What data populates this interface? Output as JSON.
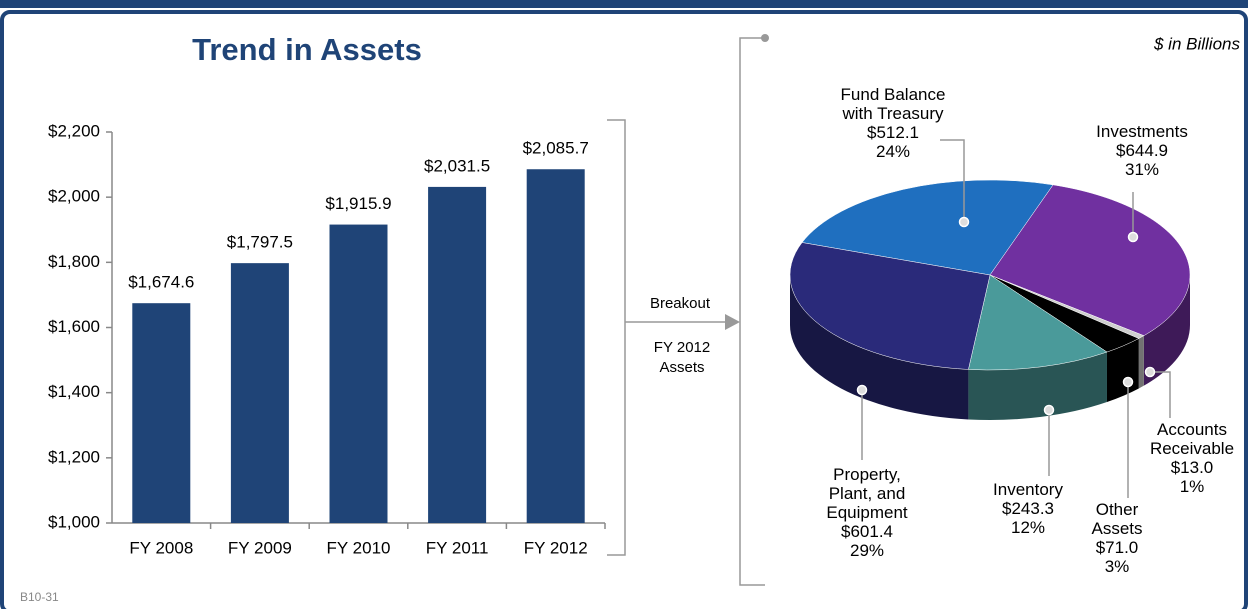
{
  "chart_data": [
    {
      "type": "bar",
      "title": "Trend in Assets",
      "categories": [
        "FY 2008",
        "FY 2009",
        "FY 2010",
        "FY 2011",
        "FY 2012"
      ],
      "values": [
        1674.6,
        1797.5,
        1915.9,
        2031.5,
        2085.7
      ],
      "value_labels": [
        "$1,674.6",
        "$1,797.5",
        "$1,915.9",
        "$2,031.5",
        "$2,085.7"
      ],
      "color": "#1f4477",
      "ylim": [
        1000,
        2200
      ],
      "yticks": [
        {
          "value": 1000,
          "label": "$1,000"
        },
        {
          "value": 1200,
          "label": "$1,200"
        },
        {
          "value": 1400,
          "label": "$1,400"
        },
        {
          "value": 1600,
          "label": "$1,600"
        },
        {
          "value": 1800,
          "label": "$1,800"
        },
        {
          "value": 2000,
          "label": "$2,000"
        },
        {
          "value": 2200,
          "label": "$2,200"
        }
      ]
    },
    {
      "type": "pie",
      "subtitle": "$ in Billions",
      "categories": [
        "Fund Balance with Treasury",
        "Investments",
        "Accounts Receivable",
        "Other Assets",
        "Inventory",
        "Property, Plant, and Equipment"
      ],
      "values": [
        512.1,
        644.9,
        13.0,
        71.0,
        243.3,
        601.4
      ],
      "value_labels": [
        "$512.1",
        "$644.9",
        "$13.0",
        "$71.0",
        "$243.3",
        "$601.4"
      ],
      "percents": [
        {
          "value": 24,
          "label": "24%"
        },
        {
          "value": 31,
          "label": "31%"
        },
        {
          "value": 1,
          "label": "1%"
        },
        {
          "value": 3,
          "label": "3%"
        },
        {
          "value": 12,
          "label": "12%"
        },
        {
          "value": 29,
          "label": "29%"
        }
      ],
      "colors": [
        "#1f6fbf",
        "#7030a0",
        "#cfcfcf",
        "#000000",
        "#4a9a9a",
        "#2a2a7a"
      ]
    }
  ],
  "connector": {
    "label": "Breakout",
    "sublabel": "FY 2012 Assets"
  },
  "footer": "B10-31"
}
